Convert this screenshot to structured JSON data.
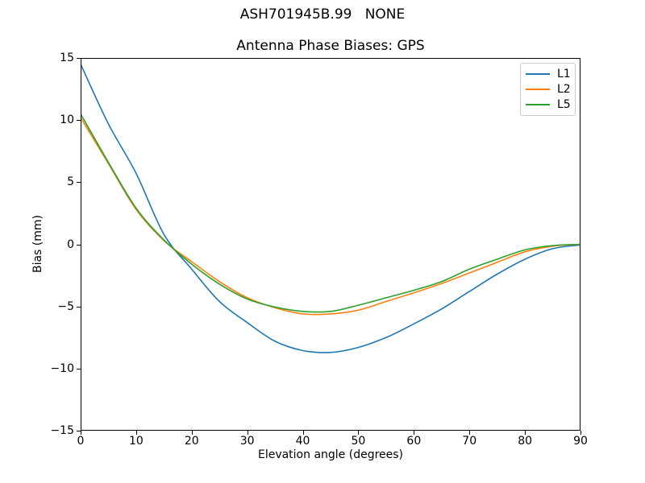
{
  "figure": {
    "suptitle": "ASH701945B.99   NONE",
    "title": "Antenna Phase Biases: GPS",
    "xlabel": "Elevation angle (degrees)",
    "ylabel": "Bias (mm)"
  },
  "chart_data": {
    "type": "line",
    "suptitle": "ASH701945B.99   NONE",
    "title": "Antenna Phase Biases: GPS",
    "xlabel": "Elevation angle (degrees)",
    "ylabel": "Bias (mm)",
    "xlim": [
      0,
      90
    ],
    "ylim": [
      -15,
      15
    ],
    "grid": false,
    "legend_position": "upper right",
    "x_ticks": [
      0,
      10,
      20,
      30,
      40,
      50,
      60,
      70,
      80,
      90
    ],
    "x_tick_labels": [
      "0",
      "10",
      "20",
      "30",
      "40",
      "50",
      "60",
      "70",
      "80",
      "90"
    ],
    "y_ticks": [
      -15,
      -10,
      -5,
      0,
      5,
      10,
      15
    ],
    "y_tick_labels": [
      "−15",
      "−10",
      "−5",
      "0",
      "5",
      "10",
      "15"
    ],
    "x": [
      0,
      5,
      10,
      15,
      20,
      25,
      30,
      35,
      40,
      45,
      50,
      55,
      60,
      65,
      70,
      75,
      80,
      85,
      90
    ],
    "series": [
      {
        "name": "L1",
        "color": "#1f77b4",
        "values": [
          14.5,
          9.7,
          5.7,
          0.8,
          -2.0,
          -4.6,
          -6.3,
          -7.8,
          -8.55,
          -8.7,
          -8.3,
          -7.5,
          -6.4,
          -5.2,
          -3.8,
          -2.4,
          -1.2,
          -0.35,
          -0.05
        ]
      },
      {
        "name": "L2",
        "color": "#ff7f0e",
        "values": [
          10.2,
          6.5,
          2.8,
          0.3,
          -1.4,
          -3.0,
          -4.3,
          -5.1,
          -5.6,
          -5.6,
          -5.3,
          -4.6,
          -3.9,
          -3.15,
          -2.3,
          -1.45,
          -0.6,
          -0.15,
          0.0
        ]
      },
      {
        "name": "L5",
        "color": "#2ca02c",
        "values": [
          10.5,
          6.6,
          2.9,
          0.35,
          -1.6,
          -3.2,
          -4.4,
          -5.05,
          -5.4,
          -5.4,
          -4.9,
          -4.3,
          -3.7,
          -3.0,
          -2.0,
          -1.2,
          -0.45,
          -0.1,
          0.0
        ]
      }
    ]
  }
}
